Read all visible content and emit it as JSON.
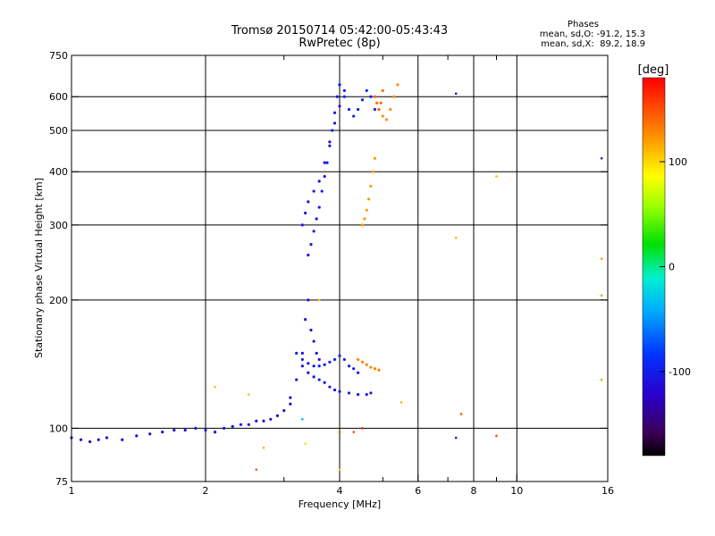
{
  "chart_data": {
    "type": "scatter",
    "title": "Tromsø 20150714 05:42:00-05:43:43",
    "subtitle": "RwPretec (8p)",
    "xlabel": "Frequency [MHz]",
    "ylabel": "Stationary phase Virtual Height [km]",
    "x_scale": "log",
    "y_scale": "log",
    "xlim": [
      1,
      16
    ],
    "ylim": [
      75,
      750
    ],
    "x_ticks": [
      1,
      2,
      4,
      6,
      8,
      10,
      16
    ],
    "x_tick_labels": [
      "1",
      "2",
      "4",
      "6",
      "8",
      "10",
      "16"
    ],
    "x_minor_ticks": [
      3,
      5,
      7,
      9
    ],
    "y_ticks": [
      75,
      100,
      200,
      300,
      400,
      500,
      600,
      750
    ],
    "y_tick_labels": [
      "75",
      "100",
      "200",
      "300",
      "400",
      "500",
      "600",
      "750"
    ],
    "grid": true,
    "stats": {
      "heading": "Phases",
      "line_o": "mean, sd,O: -91.2, 15.3",
      "line_x": "mean, sd,X:  89.2, 18.9"
    },
    "colorbar": {
      "label": "[deg]",
      "range": [
        -180,
        180
      ],
      "ticks": [
        100,
        0,
        -100
      ],
      "tick_labels": [
        "100",
        "0",
        "-100"
      ]
    },
    "traces": [
      {
        "name": "",
        "phase": -110,
        "x": [
          1.0,
          1.05,
          1.1,
          1.15,
          1.2,
          1.3,
          1.4,
          1.5,
          1.6,
          1.7,
          1.8,
          1.9,
          2.0,
          2.1,
          2.2,
          2.3,
          2.4,
          2.5,
          2.6,
          2.7,
          2.8,
          2.9,
          3.0,
          3.1
        ],
        "y": [
          95,
          94,
          93,
          94,
          95,
          94,
          96,
          97,
          98,
          99,
          99,
          100,
          99,
          98,
          100,
          101,
          102,
          102,
          104,
          104,
          105,
          107,
          110,
          114
        ]
      },
      {
        "name": "",
        "phase": -110,
        "x": [
          3.1,
          3.2,
          3.3,
          3.35,
          3.4,
          3.45,
          3.5,
          3.55,
          3.6
        ],
        "y": [
          118,
          130,
          150,
          180,
          200,
          170,
          160,
          150,
          145
        ]
      },
      {
        "name": "",
        "phase": -105,
        "x": [
          3.3,
          3.4,
          3.5,
          3.6,
          3.7,
          3.8,
          3.9,
          4.0,
          4.2,
          4.4,
          4.6,
          4.7
        ],
        "y": [
          140,
          135,
          132,
          130,
          128,
          125,
          123,
          122,
          121,
          120,
          120,
          121
        ]
      },
      {
        "name": "",
        "phase": -100,
        "x": [
          3.2,
          3.3,
          3.4,
          3.5,
          3.6,
          3.7,
          3.8,
          3.9,
          4.0,
          4.1,
          4.2,
          4.3,
          4.4
        ],
        "y": [
          150,
          145,
          142,
          140,
          140,
          141,
          143,
          145,
          148,
          145,
          140,
          138,
          135
        ]
      },
      {
        "name": "",
        "phase": -105,
        "x": [
          3.4,
          3.45,
          3.5,
          3.55,
          3.6,
          3.65,
          3.7,
          3.75,
          3.8,
          3.85,
          3.9,
          3.95,
          4.0
        ],
        "y": [
          255,
          270,
          290,
          310,
          330,
          360,
          390,
          420,
          460,
          500,
          550,
          600,
          640
        ]
      },
      {
        "name": "",
        "phase": -108,
        "x": [
          3.3,
          3.35,
          3.4,
          3.5,
          3.6,
          3.7,
          3.8,
          3.9,
          4.0,
          4.1
        ],
        "y": [
          300,
          320,
          340,
          360,
          380,
          420,
          470,
          520,
          570,
          620
        ]
      },
      {
        "name": "",
        "phase": -95,
        "x": [
          4.0,
          4.1,
          4.2,
          4.3,
          4.4,
          4.5,
          4.6,
          4.7,
          4.8
        ],
        "y": [
          640,
          600,
          560,
          540,
          560,
          590,
          620,
          600,
          560
        ]
      },
      {
        "name": "",
        "phase": 120,
        "x": [
          4.5,
          4.55,
          4.6,
          4.65,
          4.7,
          4.75,
          4.8
        ],
        "y": [
          300,
          310,
          325,
          345,
          370,
          400,
          430
        ]
      },
      {
        "name": "",
        "phase": 125,
        "x": [
          4.9,
          5.0,
          5.1,
          5.2,
          5.3,
          5.4
        ],
        "y": [
          560,
          540,
          530,
          560,
          600,
          640
        ]
      },
      {
        "name": "",
        "phase": 140,
        "x": [
          4.8,
          4.85,
          4.9,
          4.95,
          5.0
        ],
        "y": [
          600,
          580,
          560,
          580,
          620
        ]
      },
      {
        "name": "",
        "phase": 130,
        "x": [
          4.4,
          4.5,
          4.6,
          4.7,
          4.8,
          4.9
        ],
        "y": [
          145,
          143,
          141,
          139,
          138,
          137
        ]
      }
    ],
    "scatter_points": [
      {
        "x": 7.3,
        "y": 610,
        "phase": -110
      },
      {
        "x": 9.0,
        "y": 390,
        "phase": 110
      },
      {
        "x": 15.5,
        "y": 430,
        "phase": -110
      },
      {
        "x": 15.5,
        "y": 250,
        "phase": 120
      },
      {
        "x": 15.5,
        "y": 205,
        "phase": 40
      },
      {
        "x": 7.3,
        "y": 280,
        "phase": 110
      },
      {
        "x": 7.5,
        "y": 108,
        "phase": 150
      },
      {
        "x": 7.3,
        "y": 95,
        "phase": -110
      },
      {
        "x": 9.0,
        "y": 96,
        "phase": 150
      },
      {
        "x": 2.7,
        "y": 90,
        "phase": 110
      },
      {
        "x": 2.6,
        "y": 80,
        "phase": 150
      },
      {
        "x": 2.5,
        "y": 120,
        "phase": 110
      },
      {
        "x": 3.3,
        "y": 105,
        "phase": -40
      },
      {
        "x": 3.35,
        "y": 92,
        "phase": 100
      },
      {
        "x": 4.0,
        "y": 80,
        "phase": 110
      },
      {
        "x": 4.0,
        "y": 98,
        "phase": 150
      },
      {
        "x": 4.3,
        "y": 98,
        "phase": 150
      },
      {
        "x": 4.5,
        "y": 100,
        "phase": 175
      },
      {
        "x": 5.5,
        "y": 115,
        "phase": 110
      },
      {
        "x": 15.5,
        "y": 130,
        "phase": 120
      },
      {
        "x": 2.1,
        "y": 125,
        "phase": 110
      },
      {
        "x": 3.6,
        "y": 200,
        "phase": 110
      }
    ],
    "colors": {
      "background": "#ffffff",
      "axes": "#000000",
      "grid": "#000000"
    }
  }
}
